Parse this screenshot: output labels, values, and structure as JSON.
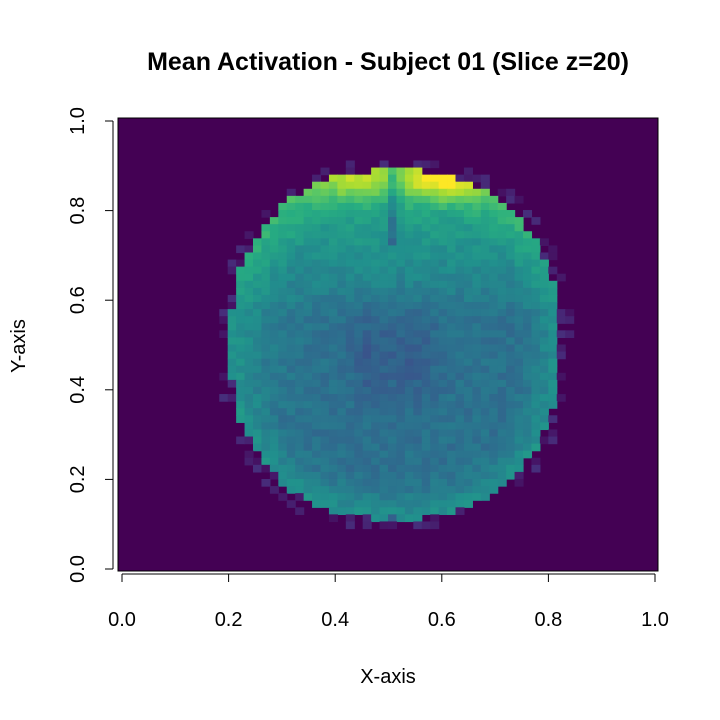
{
  "chart_data": {
    "type": "heatmap",
    "title": "Mean Activation - Subject 01 (Slice z=20)",
    "xlabel": "X-axis",
    "ylabel": "Y-axis",
    "xlim": [
      0.0,
      1.0
    ],
    "ylim": [
      0.0,
      1.0
    ],
    "x_ticks": [
      "0.0",
      "0.2",
      "0.4",
      "0.6",
      "0.8",
      "1.0"
    ],
    "y_ticks": [
      "0.0",
      "0.2",
      "0.4",
      "0.6",
      "0.8",
      "1.0"
    ],
    "colormap": "viridis",
    "background_color": "#440154",
    "grid": false,
    "legend": "none",
    "approximate_regions": [
      {
        "region": "outside brain",
        "value": 0.0
      },
      {
        "region": "brain interior",
        "value": 0.38
      },
      {
        "region": "cortex rim",
        "value": 0.5
      },
      {
        "region": "frontal lobe",
        "value": 0.65
      },
      {
        "region": "frontal peak (x≈0.6, y≈0.85)",
        "value": 0.95
      }
    ]
  }
}
